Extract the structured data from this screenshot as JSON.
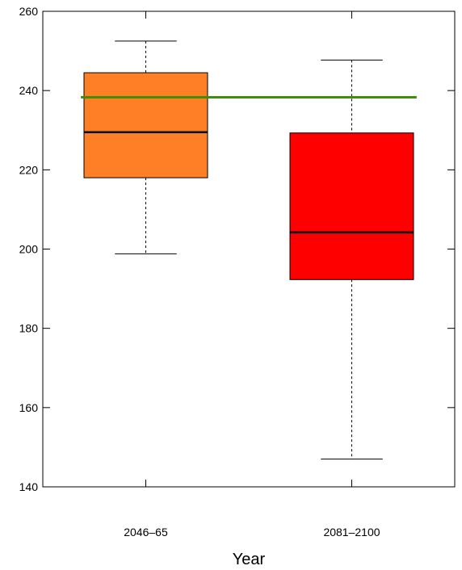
{
  "chart_data": {
    "type": "boxplot",
    "title": "",
    "xlabel": "Year",
    "ylabel": "",
    "ylim": [
      140,
      260
    ],
    "yticks": [
      140,
      160,
      180,
      200,
      220,
      240,
      260
    ],
    "grid": false,
    "categories": [
      "2046–65",
      "2081–2100"
    ],
    "boxes": [
      {
        "category": "2046–65",
        "whisker_low": 198.8,
        "q1": 218.0,
        "median": 229.5,
        "q3": 244.5,
        "whisker_high": 252.5,
        "color": "#FF7F27"
      },
      {
        "category": "2081–2100",
        "whisker_low": 147.0,
        "q1": 192.3,
        "median": 204.2,
        "q3": 229.3,
        "whisker_high": 247.7,
        "color": "#FF0000"
      }
    ],
    "reference_line": {
      "value": 238.3,
      "color": "#3E8E0A"
    },
    "median_color": "#000000"
  }
}
